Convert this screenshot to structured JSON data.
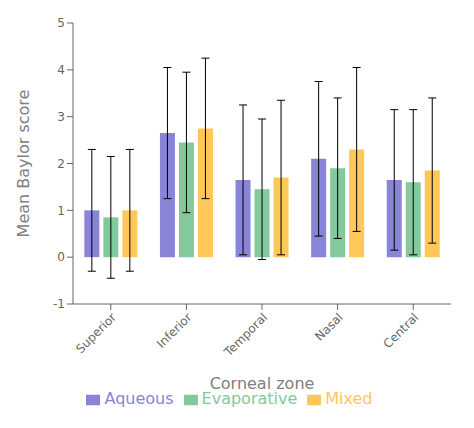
{
  "chart_data": {
    "type": "bar",
    "xlabel": "Corneal zone",
    "ylabel": "Mean Baylor score",
    "categories": [
      "Superior",
      "Inferior",
      "Temporal",
      "Nasal",
      "Central"
    ],
    "series": [
      {
        "name": "Aqueous",
        "color": "#8884d8",
        "values": [
          1.0,
          2.65,
          1.65,
          2.1,
          1.65
        ],
        "errors": [
          1.3,
          1.4,
          1.6,
          1.65,
          1.5
        ]
      },
      {
        "name": "Evaporative",
        "color": "#82ca9d",
        "values": [
          0.85,
          2.45,
          1.45,
          1.9,
          1.6
        ],
        "errors": [
          1.3,
          1.5,
          1.5,
          1.5,
          1.55
        ]
      },
      {
        "name": "Mixed",
        "color": "#ffc658",
        "values": [
          1.0,
          2.75,
          1.7,
          2.3,
          1.85
        ],
        "errors": [
          1.3,
          1.5,
          1.65,
          1.75,
          1.55
        ]
      }
    ],
    "ylim": [
      -1,
      5
    ],
    "yticks": [
      -1,
      0,
      1,
      2,
      3,
      4,
      5
    ],
    "grid": false,
    "legend": "bottom"
  }
}
